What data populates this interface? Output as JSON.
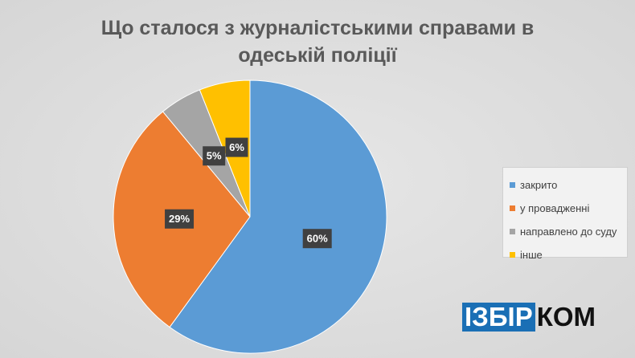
{
  "chart_data": {
    "type": "pie",
    "title": "Що сталося з журналістськими справами в одеській поліції",
    "categories": [
      "закрито",
      "у провадженні",
      "направлено до суду",
      "інше"
    ],
    "values": [
      60,
      29,
      5,
      6
    ],
    "value_labels": [
      "60%",
      "29%",
      "5%",
      "6%"
    ],
    "colors": [
      "#5b9bd5",
      "#ed7d31",
      "#a5a5a5",
      "#ffc000"
    ],
    "legend": "right"
  },
  "logo": {
    "left": "ІЗБІР",
    "right": "КОМ"
  }
}
